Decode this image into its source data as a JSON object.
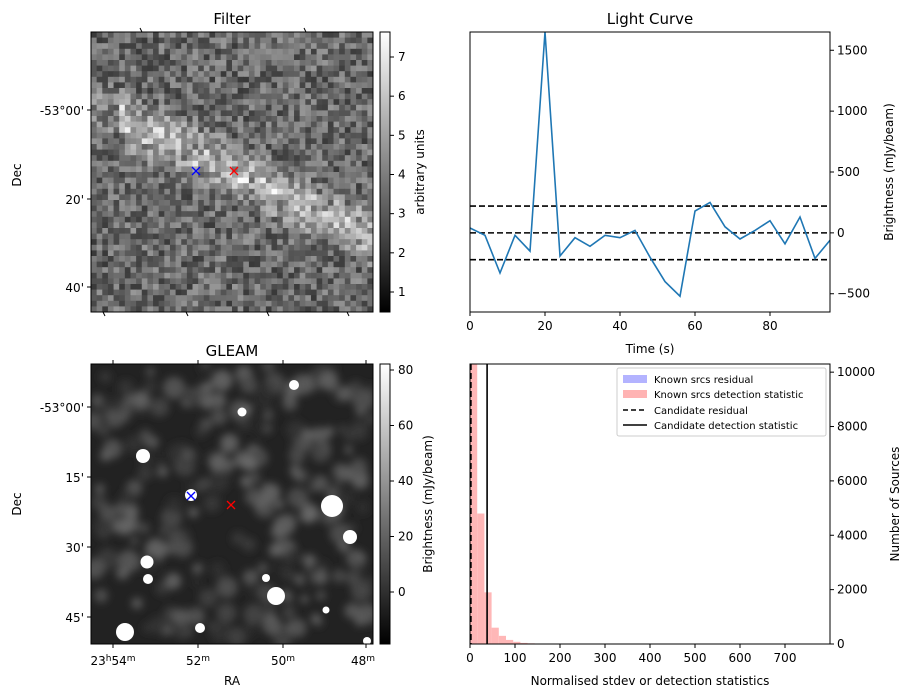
{
  "colors": {
    "line": "#1f77b4",
    "known_residual": "#b3b3ff",
    "known_detection": "#ffb3b3",
    "candidate": "#000000",
    "marker_blue": "#0000ff",
    "marker_red": "#ff0000"
  },
  "panels": {
    "filter": {
      "title": "Filter",
      "ylabel": "Dec",
      "yticks": [
        "-53°00'",
        "20'",
        "40'"
      ],
      "colorbar_label": "arbitrary units",
      "colorbar_ticks": [
        "1",
        "2",
        "3",
        "4",
        "5",
        "6",
        "7"
      ]
    },
    "gleam": {
      "title": "GLEAM",
      "ylabel": "Dec",
      "xlabel": "RA",
      "yticks": [
        "-53°00'",
        "15'",
        "30'",
        "45'"
      ],
      "xticks": [
        {
          "h": "23",
          "hs": "h",
          "m": "54",
          "ms": "m"
        },
        {
          "h": "",
          "hs": "",
          "m": "52",
          "ms": "m"
        },
        {
          "h": "",
          "hs": "",
          "m": "50",
          "ms": "m"
        },
        {
          "h": "",
          "hs": "",
          "m": "48",
          "ms": "m"
        }
      ],
      "colorbar_label": "Brightness (mJy/beam)",
      "colorbar_ticks": [
        "0",
        "20",
        "40",
        "60",
        "80"
      ]
    }
  },
  "chart_data": [
    {
      "type": "line",
      "title": "Light Curve",
      "xlabel": "Time (s)",
      "ylabel": "Brightness (mJy/beam)",
      "xlim": [
        0,
        96
      ],
      "ylim": [
        -650,
        1650
      ],
      "xticks": [
        0,
        20,
        40,
        60,
        80
      ],
      "yticks": [
        -500,
        0,
        500,
        1000,
        1500
      ],
      "x": [
        0,
        4,
        8,
        12,
        16,
        20,
        24,
        28,
        32,
        36,
        40,
        44,
        48,
        52,
        56,
        60,
        64,
        68,
        72,
        76,
        80,
        84,
        88,
        92,
        96
      ],
      "y": [
        40,
        -20,
        -330,
        -20,
        -150,
        1650,
        -190,
        -40,
        -110,
        -20,
        -40,
        20,
        -200,
        -400,
        -520,
        180,
        250,
        50,
        -50,
        20,
        100,
        -90,
        130,
        -210,
        -60
      ],
      "hlines": [
        220,
        0,
        -220
      ]
    },
    {
      "type": "bar",
      "xlabel": "Normalised stdev or detection statistics",
      "ylabel": "Number of Sources",
      "xlim": [
        0,
        800
      ],
      "ylim": [
        0,
        10300
      ],
      "xticks": [
        0,
        100,
        200,
        300,
        400,
        500,
        600,
        700
      ],
      "yticks": [
        0,
        2000,
        4000,
        6000,
        8000,
        10000
      ],
      "bin_width": 16,
      "bin_start": 0,
      "series": [
        {
          "name": "Known srcs residual",
          "values": [
            150
          ]
        },
        {
          "name": "Known srcs detection statistic",
          "values": [
            10300,
            4800,
            1900,
            600,
            300,
            150,
            80,
            40,
            25,
            15,
            12,
            10,
            8,
            6,
            5,
            5,
            4,
            4,
            3,
            3,
            3,
            3,
            4,
            3,
            2,
            2,
            2,
            2,
            3,
            2,
            2,
            1,
            2,
            1,
            1,
            1,
            1,
            1,
            1,
            1,
            1,
            1,
            1,
            1,
            1,
            1,
            2,
            1,
            1,
            1
          ]
        }
      ],
      "legend": [
        {
          "name": "Known srcs residual",
          "style": "patch"
        },
        {
          "name": "Known srcs detection statistic",
          "style": "patch"
        },
        {
          "name": "Candidate residual",
          "style": "dashed"
        },
        {
          "name": "Candidate detection statistic",
          "style": "solid"
        }
      ],
      "legend_loc": "top-right",
      "vlines": [
        {
          "name": "Candidate residual",
          "x": 2,
          "style": "dashed"
        },
        {
          "name": "Candidate detection statistic",
          "x": 38,
          "style": "solid"
        }
      ]
    }
  ]
}
